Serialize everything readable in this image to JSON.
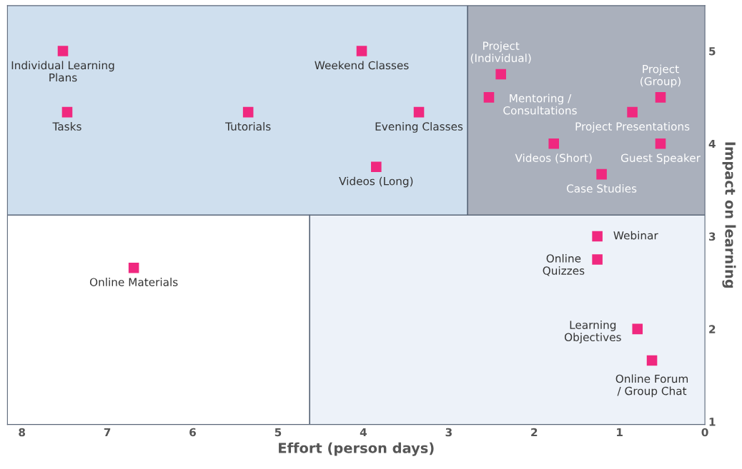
{
  "chart_data": {
    "type": "scatter",
    "xlabel": "Effort (person days)",
    "ylabel": "Impact on learning",
    "marker": "square",
    "grid": false,
    "legend": false,
    "xlim": [
      8.17,
      0
    ],
    "xticks": [
      8,
      7,
      6,
      5,
      4,
      3,
      2,
      1,
      0
    ],
    "ylim": [
      0.97,
      5.49
    ],
    "yticks": [
      1,
      2,
      3,
      4,
      5
    ],
    "ref_lines": [
      {
        "axis": "y",
        "value": 3.23,
        "color": "#5a6678"
      },
      {
        "axis": "x",
        "value": 2.78,
        "color": "#5a6678"
      },
      {
        "axis": "x",
        "value": 4.63,
        "color": "#5a6678"
      }
    ],
    "bands": [
      {
        "axis": "x",
        "from": 8.17,
        "to": 2.78,
        "color": "#cfdfee"
      },
      {
        "axis": "x",
        "from": 2.78,
        "to": 0,
        "color": "#aab0bc"
      },
      {
        "axis": "x",
        "from": 4.63,
        "to": 0,
        "color": "#edf2f9"
      }
    ],
    "series": [
      {
        "color": "#f0287f",
        "x": [
          7.52,
          7.47,
          5.35,
          4.02,
          3.35,
          3.85,
          2.39,
          2.53,
          0.52,
          0.85,
          0.52,
          1.77,
          1.21,
          1.26,
          1.26,
          6.69,
          0.79,
          0.62
        ],
        "values": [
          5.0,
          4.34,
          4.34,
          5.0,
          4.34,
          3.75,
          4.75,
          4.5,
          4.5,
          4.34,
          4.0,
          4.0,
          3.67,
          3.0,
          2.75,
          2.66,
          2.0,
          1.66
        ],
        "value_labels": [
          "Individual Learning\nPlans",
          "Tasks",
          "Tutorials",
          "Weekend Classes",
          "Evening Classes",
          "Videos (Long)",
          "Project\n(Individual)",
          "Mentoring /\nConsultations",
          "Project\n(Group)",
          "Project Presentations",
          "Guest Speaker",
          "Videos (Short)",
          "Case Studies",
          "Webinar",
          "Online\nQuizzes",
          "Online Materials",
          "Learning\nObjectives",
          "Online Forum\n/ Group Chat"
        ]
      }
    ]
  }
}
